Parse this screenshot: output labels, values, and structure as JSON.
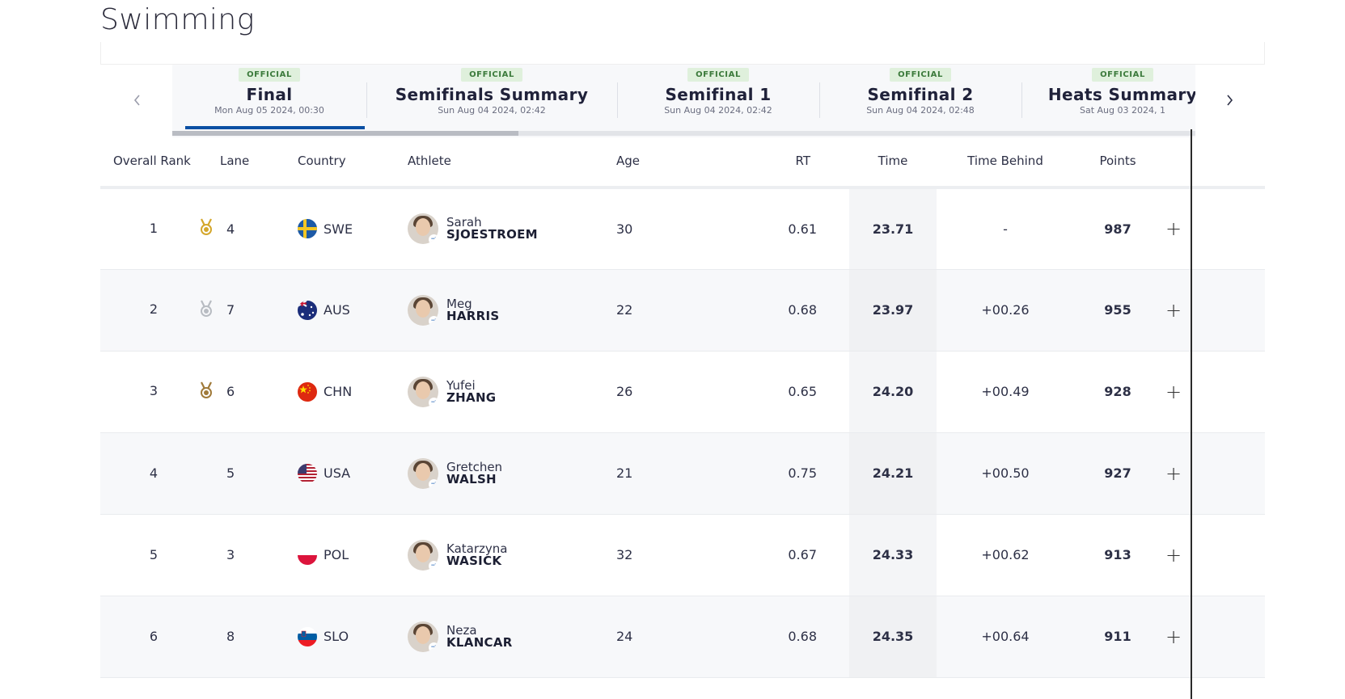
{
  "page": {
    "title": "Swimming"
  },
  "phases": [
    {
      "status": "OFFICIAL",
      "name": "Final",
      "date": "Mon Aug 05 2024, 00:30",
      "active": true
    },
    {
      "status": "OFFICIAL",
      "name": "Semifinals Summary",
      "date": "Sun Aug 04 2024, 02:42",
      "active": false
    },
    {
      "status": "OFFICIAL",
      "name": "Semifinal 1",
      "date": "Sun Aug 04 2024, 02:42",
      "active": false
    },
    {
      "status": "OFFICIAL",
      "name": "Semifinal 2",
      "date": "Sun Aug 04 2024, 02:48",
      "active": false
    },
    {
      "status": "OFFICIAL",
      "name": "Heats Summary",
      "date": "Sat Aug 03 2024, 1",
      "active": false
    }
  ],
  "table": {
    "headers": {
      "rank": "Overall Rank",
      "lane": "Lane",
      "country": "Country",
      "athlete": "Athlete",
      "age": "Age",
      "rt": "RT",
      "time": "Time",
      "behind": "Time Behind",
      "points": "Points"
    },
    "rows": [
      {
        "rank": "1",
        "medal": "gold",
        "lane": "4",
        "noc": "SWE",
        "given": "Sarah",
        "family": "SJOESTROEM",
        "age": "30",
        "rt": "0.61",
        "time": "23.71",
        "behind": "-",
        "points": "987",
        "expand": "+"
      },
      {
        "rank": "2",
        "medal": "silver",
        "lane": "7",
        "noc": "AUS",
        "given": "Meg",
        "family": "HARRIS",
        "age": "22",
        "rt": "0.68",
        "time": "23.97",
        "behind": "+00.26",
        "points": "955",
        "expand": "+"
      },
      {
        "rank": "3",
        "medal": "bronze",
        "lane": "6",
        "noc": "CHN",
        "given": "Yufei",
        "family": "ZHANG",
        "age": "26",
        "rt": "0.65",
        "time": "24.20",
        "behind": "+00.49",
        "points": "928",
        "expand": "+"
      },
      {
        "rank": "4",
        "medal": "",
        "lane": "5",
        "noc": "USA",
        "given": "Gretchen",
        "family": "WALSH",
        "age": "21",
        "rt": "0.75",
        "time": "24.21",
        "behind": "+00.50",
        "points": "927",
        "expand": "+"
      },
      {
        "rank": "5",
        "medal": "",
        "lane": "3",
        "noc": "POL",
        "given": "Katarzyna",
        "family": "WASICK",
        "age": "32",
        "rt": "0.67",
        "time": "24.33",
        "behind": "+00.62",
        "points": "913",
        "expand": "+"
      },
      {
        "rank": "6",
        "medal": "",
        "lane": "8",
        "noc": "SLO",
        "given": "Neza",
        "family": "KLANCAR",
        "age": "24",
        "rt": "0.68",
        "time": "24.35",
        "behind": "+00.64",
        "points": "911",
        "expand": "+"
      }
    ]
  },
  "colors": {
    "active_tab_bar": "#0a4fa3",
    "official_badge_bg": "#dff0dc",
    "official_badge_text": "#3b7a3b",
    "gold": "#d4a72c",
    "silver": "#b8bcc2",
    "bronze": "#a07a3a"
  }
}
